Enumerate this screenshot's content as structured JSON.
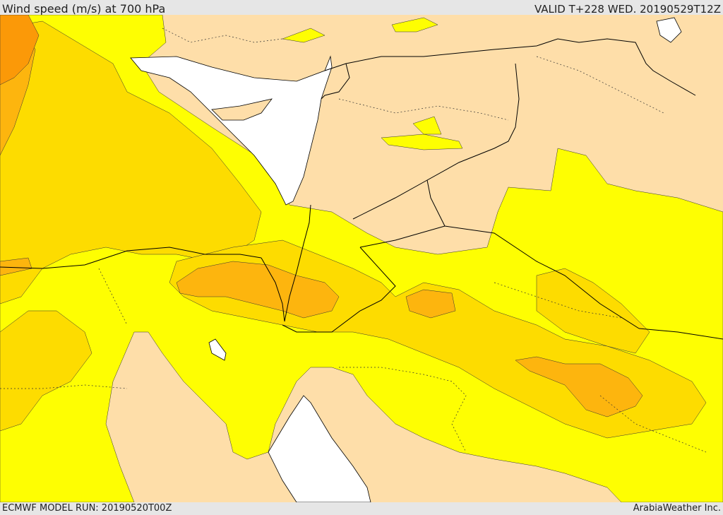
{
  "header": {
    "title": "Wind speed (m/s) at 700 hPa",
    "valid": "VALID T+228 WED. 20190529T12Z"
  },
  "footer": {
    "model_run": "ECMWF MODEL RUN: 20190520T00Z",
    "credit": "ArabiaWeather Inc."
  },
  "map": {
    "colors": {
      "land_background": "#fedea9",
      "sea": "#ffffff",
      "wind_light": "#fefe02",
      "wind_moderate": "#fddc00",
      "wind_strong": "#fdb50e",
      "wind_strongest": "#fb9908",
      "border_line": "#000000"
    }
  }
}
